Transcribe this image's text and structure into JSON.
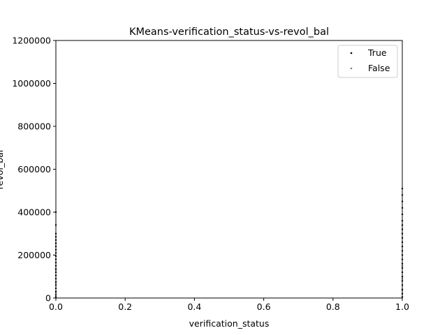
{
  "chart_data": {
    "type": "scatter",
    "title": "KMeans-verification_status-vs-revol_bal",
    "xlabel": "verification_status",
    "ylabel": "revol_bal",
    "xlim": [
      0,
      1
    ],
    "ylim": [
      0,
      1200000
    ],
    "xticks": [
      "0.0",
      "0.2",
      "0.4",
      "0.6",
      "0.8",
      "1.0"
    ],
    "yticks": [
      "0",
      "200000",
      "400000",
      "600000",
      "800000",
      "1000000",
      "1200000"
    ],
    "legend_position": "upper-right",
    "series": [
      {
        "name": "True",
        "color": "#000000",
        "points": [
          {
            "x": 0,
            "y": 400000
          },
          {
            "x": 0,
            "y": 340000
          },
          {
            "x": 0,
            "y": 300000
          },
          {
            "x": 0,
            "y": 285000
          },
          {
            "x": 0,
            "y": 270000
          },
          {
            "x": 0,
            "y": 255000
          },
          {
            "x": 0,
            "y": 240000
          },
          {
            "x": 0,
            "y": 225000
          },
          {
            "x": 0,
            "y": 210000
          },
          {
            "x": 0,
            "y": 195000
          },
          {
            "x": 0,
            "y": 180000
          },
          {
            "x": 0,
            "y": 165000
          },
          {
            "x": 0,
            "y": 150000
          },
          {
            "x": 0,
            "y": 135000
          },
          {
            "x": 0,
            "y": 120000
          },
          {
            "x": 0,
            "y": 105000
          },
          {
            "x": 0,
            "y": 90000
          },
          {
            "x": 0,
            "y": 75000
          },
          {
            "x": 0,
            "y": 60000
          },
          {
            "x": 0,
            "y": 45000
          },
          {
            "x": 0,
            "y": 30000
          },
          {
            "x": 0,
            "y": 15000
          },
          {
            "x": 0,
            "y": 5000
          },
          {
            "x": 1,
            "y": 510000
          },
          {
            "x": 1,
            "y": 480000
          },
          {
            "x": 1,
            "y": 450000
          },
          {
            "x": 1,
            "y": 420000
          },
          {
            "x": 1,
            "y": 390000
          },
          {
            "x": 1,
            "y": 360000
          },
          {
            "x": 1,
            "y": 340000
          },
          {
            "x": 1,
            "y": 320000
          },
          {
            "x": 1,
            "y": 300000
          },
          {
            "x": 1,
            "y": 280000
          },
          {
            "x": 1,
            "y": 260000
          },
          {
            "x": 1,
            "y": 240000
          },
          {
            "x": 1,
            "y": 220000
          },
          {
            "x": 1,
            "y": 200000
          },
          {
            "x": 1,
            "y": 180000
          },
          {
            "x": 1,
            "y": 160000
          },
          {
            "x": 1,
            "y": 140000
          },
          {
            "x": 1,
            "y": 120000
          },
          {
            "x": 1,
            "y": 100000
          },
          {
            "x": 1,
            "y": 80000
          },
          {
            "x": 1,
            "y": 60000
          },
          {
            "x": 1,
            "y": 40000
          },
          {
            "x": 1,
            "y": 20000
          },
          {
            "x": 1,
            "y": 5000
          }
        ]
      },
      {
        "name": "False",
        "color": "#808080",
        "points": [
          {
            "x": 0,
            "y": 130000
          },
          {
            "x": 0,
            "y": 70000
          },
          {
            "x": 0,
            "y": 25000
          },
          {
            "x": 1,
            "y": 150000
          },
          {
            "x": 1,
            "y": 90000
          },
          {
            "x": 1,
            "y": 35000
          }
        ]
      }
    ]
  }
}
